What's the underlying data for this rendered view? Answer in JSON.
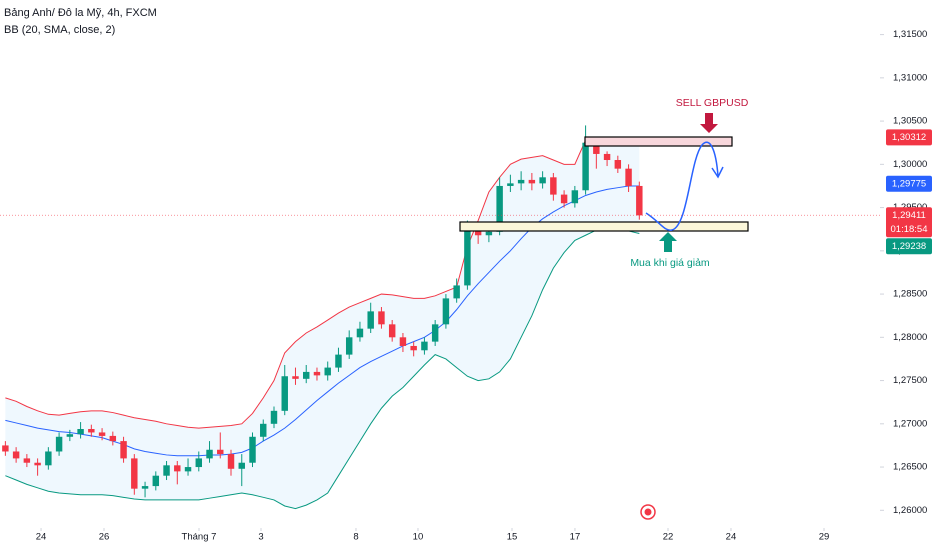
{
  "chart_data": {
    "type": "candlestick",
    "title": "Bảng Anh/ Đô la Mỹ, 4h, FXCM",
    "indicator": "BB (20, SMA, close, 2)",
    "up_color": "#089981",
    "down_color": "#f23645",
    "open": [
      1.2675,
      1.2668,
      1.266,
      1.2655,
      1.2652,
      1.2668,
      1.2685,
      1.2688,
      1.2694,
      1.269,
      1.2686,
      1.268,
      1.266,
      1.2625,
      1.2628,
      1.264,
      1.2652,
      1.2645,
      1.265,
      1.266,
      1.267,
      1.2665,
      1.2648,
      1.2655,
      1.2685,
      1.27,
      1.2715,
      1.2755,
      1.2752,
      1.276,
      1.2756,
      1.2765,
      1.278,
      1.28,
      1.281,
      1.283,
      1.2815,
      1.28,
      1.279,
      1.2785,
      1.2795,
      1.2815,
      1.2845,
      1.286,
      1.2925,
      1.2918,
      1.2922,
      1.2975,
      1.2978,
      1.2982,
      1.2978,
      1.2985,
      1.2965,
      1.2955,
      1.297,
      1.3025,
      1.3012,
      1.3005,
      1.2995,
      1.2975
    ],
    "high": [
      1.268,
      1.2673,
      1.2665,
      1.266,
      1.2673,
      1.269,
      1.2693,
      1.2702,
      1.2699,
      1.2695,
      1.2691,
      1.2685,
      1.2665,
      1.2633,
      1.2645,
      1.2657,
      1.2657,
      1.266,
      1.2668,
      1.268,
      1.269,
      1.267,
      1.2665,
      1.269,
      1.2705,
      1.272,
      1.2768,
      1.2765,
      1.2768,
      1.2765,
      1.2772,
      1.2788,
      1.2808,
      1.2818,
      1.284,
      1.2835,
      1.282,
      1.2805,
      1.2795,
      1.28,
      1.282,
      1.285,
      1.2868,
      1.2935,
      1.293,
      1.293,
      1.2985,
      1.2988,
      1.2992,
      1.299,
      1.2992,
      1.299,
      1.297,
      1.2975,
      1.3045,
      1.303,
      1.3015,
      1.301,
      1.3,
      1.298
    ],
    "low": [
      1.2663,
      1.2655,
      1.265,
      1.264,
      1.2647,
      1.2663,
      1.268,
      1.2683,
      1.2685,
      1.2681,
      1.2675,
      1.2655,
      1.2618,
      1.2615,
      1.2623,
      1.2635,
      1.263,
      1.264,
      1.2645,
      1.2655,
      1.266,
      1.264,
      1.2628,
      1.265,
      1.268,
      1.2695,
      1.271,
      1.2745,
      1.2747,
      1.275,
      1.275,
      1.276,
      1.2775,
      1.2795,
      1.2805,
      1.281,
      1.2795,
      1.2783,
      1.2778,
      1.278,
      1.279,
      1.281,
      1.284,
      1.2855,
      1.2908,
      1.291,
      1.2918,
      1.2968,
      1.297,
      1.297,
      1.2972,
      1.2958,
      1.295,
      1.295,
      1.2965,
      1.2995,
      1.2998,
      1.299,
      1.2968,
      1.2936
    ],
    "close": [
      1.2668,
      1.266,
      1.2655,
      1.2652,
      1.2668,
      1.2685,
      1.2688,
      1.2694,
      1.269,
      1.2686,
      1.268,
      1.266,
      1.2625,
      1.2628,
      1.264,
      1.2652,
      1.2645,
      1.265,
      1.266,
      1.267,
      1.2665,
      1.2648,
      1.2655,
      1.2685,
      1.27,
      1.2715,
      1.2755,
      1.2752,
      1.276,
      1.2756,
      1.2765,
      1.278,
      1.28,
      1.281,
      1.283,
      1.2815,
      1.28,
      1.279,
      1.2785,
      1.2795,
      1.2815,
      1.2845,
      1.286,
      1.2925,
      1.2918,
      1.2922,
      1.2975,
      1.2978,
      1.2982,
      1.2978,
      1.2985,
      1.2965,
      1.2955,
      1.297,
      1.3025,
      1.3012,
      1.3005,
      1.2995,
      1.2975,
      1.2941
    ],
    "series": [
      {
        "color": "#f23645",
        "values": [
          1.273,
          1.2726,
          1.272,
          1.2715,
          1.2711,
          1.271,
          1.2712,
          1.2714,
          1.2715,
          1.2715,
          1.2713,
          1.271,
          1.2707,
          1.2705,
          1.2703,
          1.27,
          1.2698,
          1.2696,
          1.2695,
          1.2696,
          1.2697,
          1.2698,
          1.27,
          1.2712,
          1.273,
          1.275,
          1.2782,
          1.2795,
          1.2805,
          1.2812,
          1.282,
          1.2828,
          1.2835,
          1.284,
          1.2845,
          1.285,
          1.2849,
          1.2847,
          1.2845,
          1.2845,
          1.2848,
          1.2853,
          1.2858,
          1.2905,
          1.2935,
          1.2968,
          1.2985,
          1.3,
          1.3006,
          1.3008,
          1.301,
          1.3005,
          1.3,
          1.3,
          1.3028,
          1.303,
          1.303,
          1.303,
          1.3028,
          1.3025
        ]
      },
      {
        "color": "#2962ff",
        "values": [
          1.2704,
          1.2701,
          1.2698,
          1.2695,
          1.2693,
          1.2691,
          1.269,
          1.2688,
          1.2686,
          1.2684,
          1.268,
          1.2676,
          1.2671,
          1.2668,
          1.2666,
          1.2664,
          1.2663,
          1.2663,
          1.2663,
          1.2664,
          1.2664,
          1.2665,
          1.2667,
          1.2672,
          1.268,
          1.2687,
          1.2695,
          1.2705,
          1.2716,
          1.2727,
          1.2737,
          1.2747,
          1.2756,
          1.2765,
          1.2772,
          1.2778,
          1.2784,
          1.279,
          1.2795,
          1.28,
          1.2808,
          1.2818,
          1.2832,
          1.2848,
          1.2862,
          1.2875,
          1.2888,
          1.29,
          1.2914,
          1.2927,
          1.2937,
          1.2945,
          1.2952,
          1.2958,
          1.2964,
          1.2968,
          1.2971,
          1.2973,
          1.2975,
          1.2975
        ]
      },
      {
        "color": "#089981",
        "values": [
          1.264,
          1.2635,
          1.263,
          1.2626,
          1.2622,
          1.262,
          1.2619,
          1.2618,
          1.2618,
          1.2618,
          1.2617,
          1.2615,
          1.2613,
          1.2612,
          1.2612,
          1.2612,
          1.2612,
          1.2612,
          1.2612,
          1.2614,
          1.2616,
          1.2618,
          1.262,
          1.2618,
          1.2615,
          1.2612,
          1.2605,
          1.2602,
          1.2606,
          1.2612,
          1.262,
          1.264,
          1.266,
          1.268,
          1.27,
          1.2718,
          1.2732,
          1.2742,
          1.2755,
          1.2768,
          1.278,
          1.2775,
          1.2765,
          1.2755,
          1.275,
          1.2752,
          1.276,
          1.2775,
          1.28,
          1.2825,
          1.2855,
          1.288,
          1.2898,
          1.2912,
          1.2918,
          1.2924,
          1.2926,
          1.2925,
          1.2923,
          1.292
        ]
      }
    ],
    "band_fill": "#2196f3",
    "xlim": [
      -0.5,
      81.4
    ],
    "xticks": [
      {
        "value": 3.32,
        "label": "24"
      },
      {
        "value": 9.18,
        "label": "26"
      },
      {
        "value": 18.02,
        "label": "Tháng 7"
      },
      {
        "value": 23.79,
        "label": "3"
      },
      {
        "value": 32.63,
        "label": "8"
      },
      {
        "value": 38.4,
        "label": "10"
      },
      {
        "value": 47.15,
        "label": "15"
      },
      {
        "value": 53.01,
        "label": "17"
      },
      {
        "value": 61.67,
        "label": "22"
      },
      {
        "value": 67.53,
        "label": "24"
      },
      {
        "value": 76.19,
        "label": "29"
      }
    ],
    "ylim": [
      1.2583,
      1.319
    ],
    "yticks": [
      {
        "value": 1.315,
        "label": "1,31500"
      },
      {
        "value": 1.31,
        "label": "1,31000"
      },
      {
        "value": 1.305,
        "label": "1,30500"
      },
      {
        "value": 1.3,
        "label": "1,30000"
      },
      {
        "value": 1.295,
        "label": "1,29500"
      },
      {
        "value": 1.29,
        "label": "1,29000"
      },
      {
        "value": 1.285,
        "label": "1,28500"
      },
      {
        "value": 1.28,
        "label": "1,28000"
      },
      {
        "value": 1.275,
        "label": "1,27500"
      },
      {
        "value": 1.27,
        "label": "1,27000"
      },
      {
        "value": 1.265,
        "label": "1,26500"
      },
      {
        "value": 1.26,
        "label": "1,26000"
      }
    ],
    "price_labels": [
      {
        "value": 1.30312,
        "label": "1,30312",
        "color": "#f23645"
      },
      {
        "value": 1.29775,
        "label": "1,29775",
        "color": "#2962ff"
      },
      {
        "value": 1.29411,
        "label": "1,29411",
        "color": "#f23645",
        "countdown": "01:18:54"
      },
      {
        "value": 1.29238,
        "label": "1,29238",
        "color": "#089981"
      }
    ],
    "annotations": {
      "sell": "SELL GBPUSD",
      "buy": "Mua khi giá giảm"
    }
  }
}
